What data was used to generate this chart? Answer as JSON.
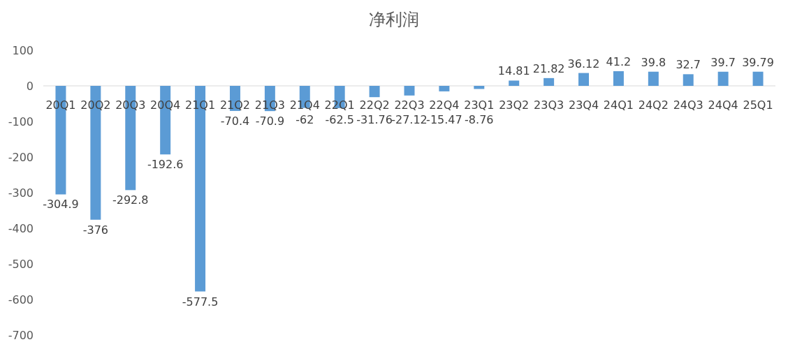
{
  "chart_data": {
    "type": "bar",
    "title": "净利润",
    "categories": [
      "20Q1",
      "20Q2",
      "20Q3",
      "20Q4",
      "21Q1",
      "21Q2",
      "21Q3",
      "21Q4",
      "22Q1",
      "22Q2",
      "22Q3",
      "22Q4",
      "23Q1",
      "23Q2",
      "23Q3",
      "23Q4",
      "24Q1",
      "24Q2",
      "24Q3",
      "24Q4",
      "25Q1"
    ],
    "values": [
      -304.9,
      -376,
      -292.8,
      -192.6,
      -577.5,
      -70.4,
      -70.9,
      -62,
      -62.5,
      -31.76,
      -27.12,
      -15.47,
      -8.76,
      14.81,
      21.82,
      36.12,
      41.2,
      39.8,
      32.7,
      39.7,
      39.79
    ],
    "color": "#5b9bd5",
    "ylim": [
      -700,
      100
    ],
    "yticks": [
      -700,
      -600,
      -500,
      -400,
      -300,
      -200,
      -100,
      0,
      100
    ],
    "data_labels": true,
    "grid": false,
    "legend": false
  }
}
